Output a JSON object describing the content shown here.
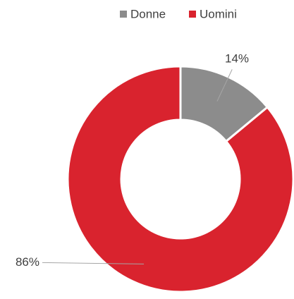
{
  "chart_data": {
    "type": "donut",
    "categories": [
      "Donne",
      "Uomini"
    ],
    "values": [
      14,
      86
    ],
    "value_labels": [
      "14%",
      "86%"
    ],
    "colors": [
      "#8c8c8c",
      "#d9232e"
    ],
    "legend": "top"
  }
}
